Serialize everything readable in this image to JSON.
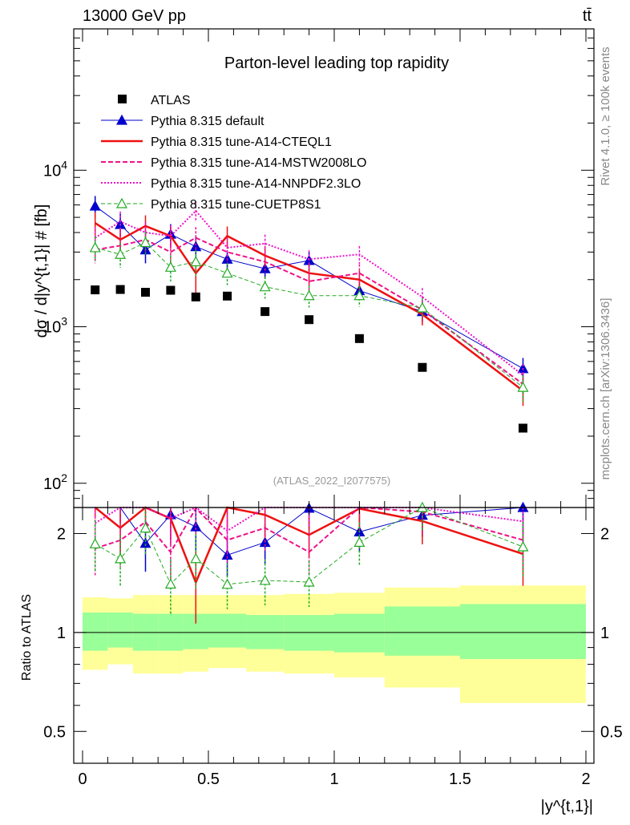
{
  "header": {
    "energy_label": "13000 GeV pp",
    "process_label": "tt̄"
  },
  "side_text": {
    "rivet": "Rivet 4.1.0, ≥ 100k events",
    "mcplots": "mcplots.cern.ch [arXiv:1306.3436]"
  },
  "chart_data": {
    "type": "line",
    "title": "Parton-level leading top rapidity",
    "analysis_id": "(ATLAS_2022_I2077575)",
    "xlabel": "|y^{t,1}|",
    "ylabel": "dσ / d|y^{t,1}| # [fb]",
    "ratio_ylabel": "Ratio to ATLAS",
    "xlim": [
      0,
      2
    ],
    "ylim": [
      70,
      80000
    ],
    "ratio_ylim": [
      0.4,
      2.4
    ],
    "x_ticks": [
      "0",
      "0.5",
      "1",
      "1.5",
      "2"
    ],
    "y_ticks": [
      "10^2",
      "10^3",
      "10^4"
    ],
    "ratio_ticks": [
      "0.5",
      "1",
      "2"
    ],
    "bins": [
      [
        0,
        0.1
      ],
      [
        0.1,
        0.2
      ],
      [
        0.2,
        0.3
      ],
      [
        0.3,
        0.4
      ],
      [
        0.4,
        0.5
      ],
      [
        0.5,
        0.65
      ],
      [
        0.65,
        0.8
      ],
      [
        0.8,
        1.0
      ],
      [
        1.0,
        1.2
      ],
      [
        1.2,
        1.5
      ],
      [
        1.5,
        2.0
      ]
    ],
    "x": [
      0.05,
      0.15,
      0.25,
      0.35,
      0.45,
      0.575,
      0.725,
      0.9,
      1.1,
      1.35,
      1.75
    ],
    "data": {
      "name": "ATLAS",
      "values": [
        1720,
        1730,
        1660,
        1710,
        1550,
        1570,
        1250,
        1110,
        840,
        550,
        225
      ],
      "band_inner": [
        [
          0.88,
          1.15
        ],
        [
          0.9,
          1.15
        ],
        [
          0.88,
          1.14
        ],
        [
          0.88,
          1.14
        ],
        [
          0.89,
          1.14
        ],
        [
          0.9,
          1.14
        ],
        [
          0.89,
          1.13
        ],
        [
          0.88,
          1.13
        ],
        [
          0.87,
          1.14
        ],
        [
          0.85,
          1.2
        ],
        [
          0.83,
          1.22
        ]
      ],
      "band_outer": [
        [
          0.77,
          1.28
        ],
        [
          0.8,
          1.27
        ],
        [
          0.75,
          1.3
        ],
        [
          0.75,
          1.3
        ],
        [
          0.76,
          1.3
        ],
        [
          0.78,
          1.3
        ],
        [
          0.76,
          1.3
        ],
        [
          0.75,
          1.31
        ],
        [
          0.73,
          1.32
        ],
        [
          0.68,
          1.37
        ],
        [
          0.61,
          1.39
        ]
      ]
    },
    "series": [
      {
        "name": "Pythia 8.315 default",
        "color": "#0000cc",
        "dash": "",
        "width": 1,
        "marker": "triangle-filled",
        "values": [
          5900,
          4500,
          3100,
          3900,
          3250,
          2700,
          2350,
          2650,
          1700,
          1250,
          540
        ],
        "rel_err": [
          0.16,
          0.17,
          0.18,
          0.16,
          0.17,
          0.14,
          0.14,
          0.14,
          0.13,
          0.14,
          0.17
        ]
      },
      {
        "name": "Pythia 8.315 tune-A14-CTEQL1",
        "color": "#ee1111",
        "dash": "",
        "width": 2.5,
        "marker": "none",
        "values": [
          4600,
          3600,
          4400,
          3800,
          2200,
          3800,
          2850,
          2200,
          2000,
          1200,
          390
        ],
        "rel_err": [
          0.17,
          0.18,
          0.17,
          0.17,
          0.25,
          0.15,
          0.15,
          0.15,
          0.14,
          0.15,
          0.2
        ]
      },
      {
        "name": "Pythia 8.315 tune-A14-MSTW2008LO",
        "color": "#ee1188",
        "dash": "6,3",
        "width": 2,
        "marker": "none",
        "values": [
          3100,
          3300,
          3600,
          3000,
          3700,
          3000,
          2600,
          1950,
          2200,
          1280,
          430
        ],
        "rel_err": [
          0.18,
          0.17,
          0.17,
          0.18,
          0.17,
          0.15,
          0.15,
          0.15,
          0.14,
          0.15,
          0.19
        ]
      },
      {
        "name": "Pythia 8.315 tune-A14-NNPDF2.3LO",
        "color": "#ee11cc",
        "dash": "2,2",
        "width": 2,
        "marker": "none",
        "values": [
          3700,
          4700,
          4000,
          3800,
          5500,
          3200,
          3400,
          2700,
          2900,
          1550,
          490
        ],
        "rel_err": [
          0.17,
          0.16,
          0.16,
          0.17,
          0.14,
          0.15,
          0.14,
          0.14,
          0.13,
          0.14,
          0.18
        ]
      },
      {
        "name": "Pythia 8.315 tune-CUETP8S1",
        "color": "#22aa22",
        "dash": "5,3",
        "width": 1,
        "marker": "triangle-open",
        "values": [
          3200,
          2900,
          3450,
          2400,
          2600,
          2200,
          1800,
          1580,
          1580,
          1320,
          410
        ],
        "rel_err": [
          0.18,
          0.18,
          0.17,
          0.19,
          0.19,
          0.16,
          0.16,
          0.16,
          0.15,
          0.15,
          0.19
        ]
      }
    ]
  }
}
